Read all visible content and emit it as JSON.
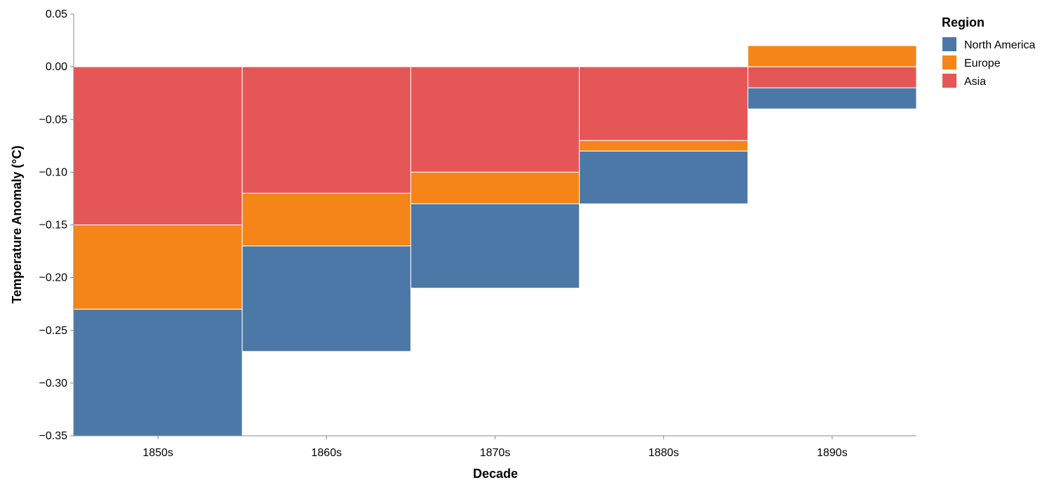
{
  "chart_data": {
    "type": "bar",
    "stacked": true,
    "diverging": true,
    "categories": [
      "1850s",
      "1860s",
      "1870s",
      "1880s",
      "1890s"
    ],
    "series": [
      {
        "name": "North America",
        "color": "#4c78a8",
        "values": [
          -0.12,
          -0.1,
          -0.08,
          -0.05,
          -0.02
        ]
      },
      {
        "name": "Europe",
        "color": "#f58518",
        "values": [
          -0.08,
          -0.05,
          -0.03,
          -0.01,
          0.02
        ]
      },
      {
        "name": "Asia",
        "color": "#e45756",
        "values": [
          -0.15,
          -0.12,
          -0.1,
          -0.07,
          -0.02
        ]
      }
    ],
    "stack_order": [
      "Asia",
      "Europe",
      "North America"
    ],
    "xlabel": "Decade",
    "ylabel": "Temperature Anomaly (°C)",
    "ylim": [
      -0.35,
      0.05
    ],
    "yticks": [
      "0.05",
      "0.00",
      "−0.05",
      "−0.10",
      "−0.15",
      "−0.20",
      "−0.25",
      "−0.30",
      "−0.35"
    ],
    "ytick_values": [
      0.05,
      0.0,
      -0.05,
      -0.1,
      -0.15,
      -0.2,
      -0.25,
      -0.3,
      -0.35
    ],
    "grid": false,
    "legend": {
      "title": "Region",
      "position": "top-right"
    }
  }
}
